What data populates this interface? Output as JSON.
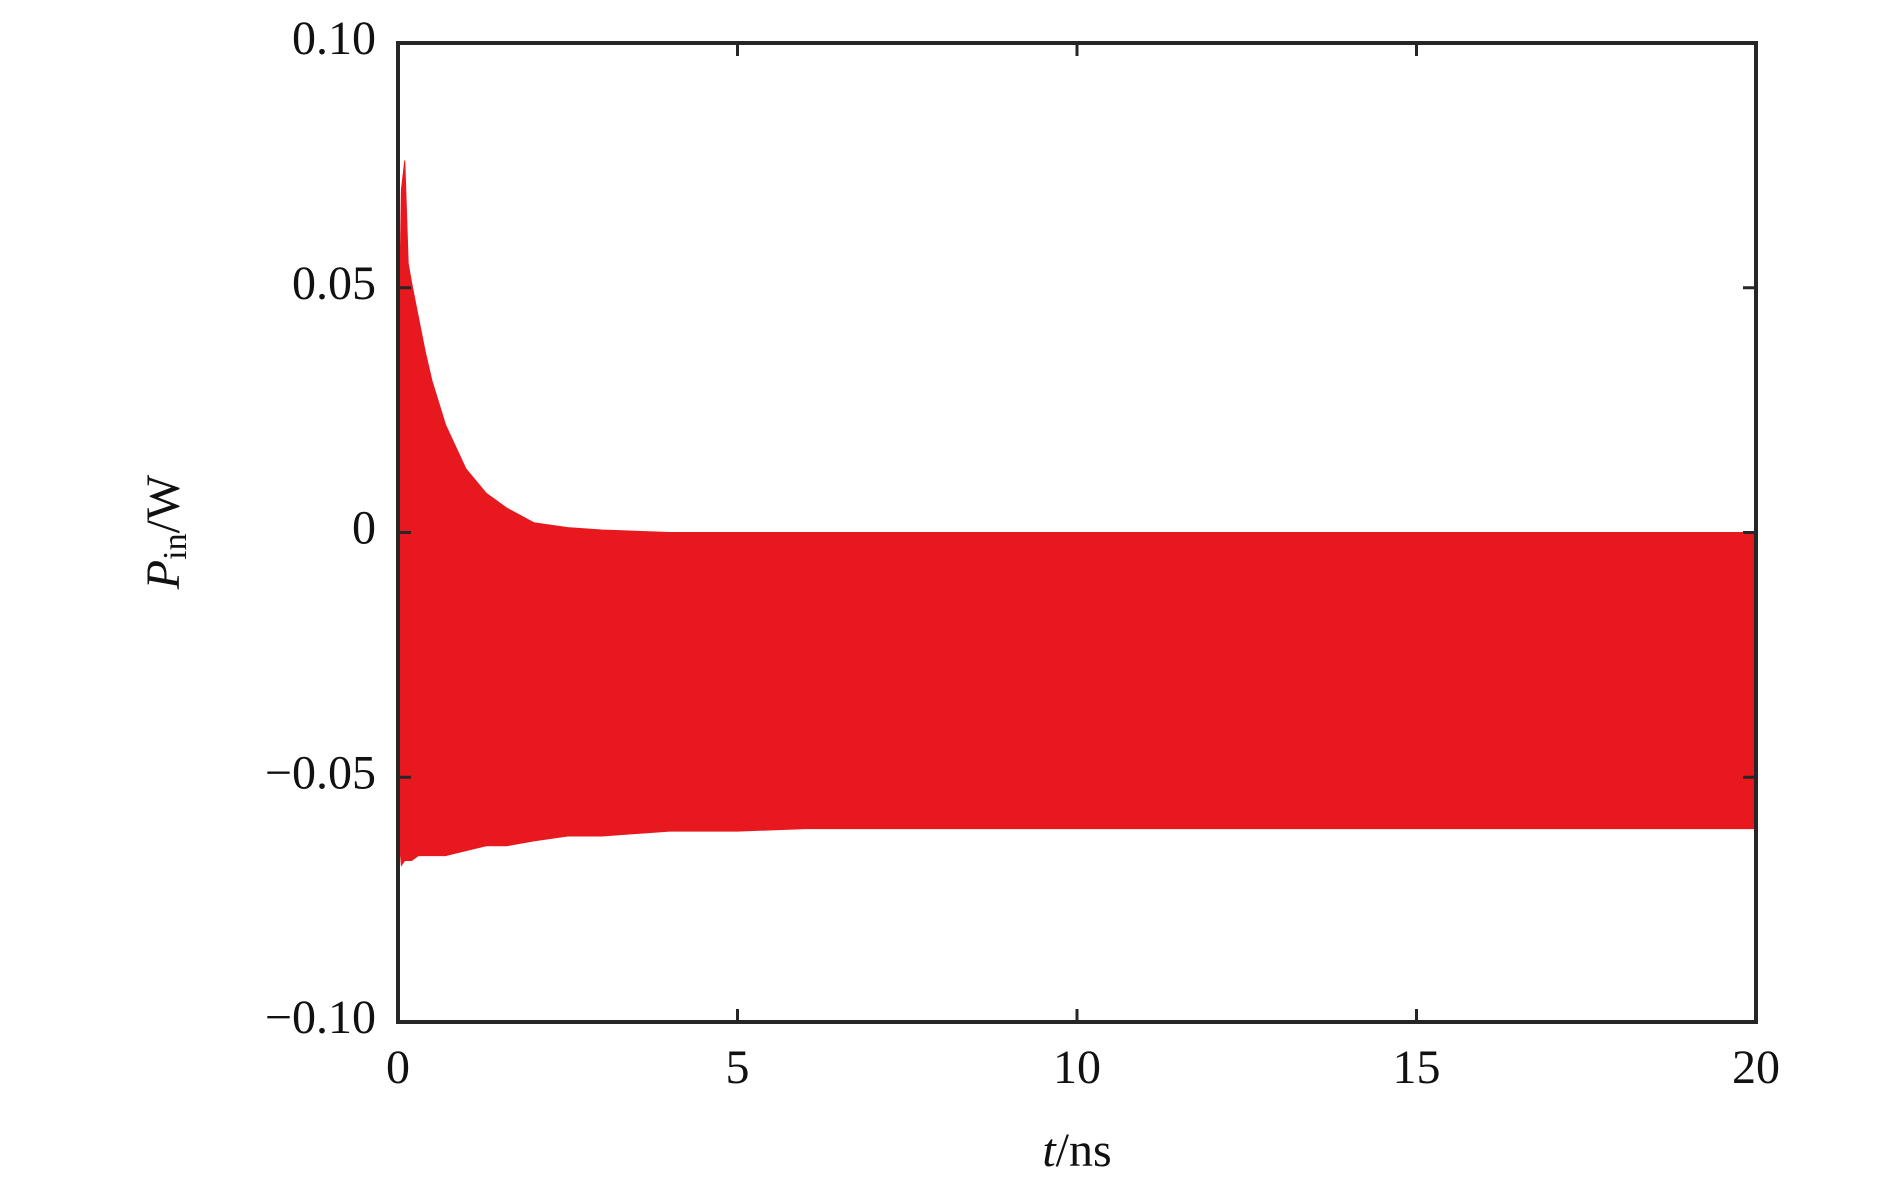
{
  "chart_data": {
    "type": "area",
    "xlabel": {
      "var": "t",
      "unit": "/ns"
    },
    "ylabel": {
      "var": "P",
      "sub": "in",
      "unit": "/W"
    },
    "x": [
      0,
      0.05,
      0.1,
      0.15,
      0.2,
      0.3,
      0.4,
      0.5,
      0.7,
      1.0,
      1.3,
      1.6,
      2.0,
      2.5,
      3.0,
      4.0,
      5.0,
      6.0,
      8.0,
      10.0,
      12.0,
      14.0,
      16.0,
      18.0,
      20.0
    ],
    "series": [
      {
        "color": "#e8191e",
        "values": [
          0.025,
          0.07,
          0.076,
          0.055,
          0.051,
          0.044,
          0.037,
          0.031,
          0.022,
          0.013,
          0.008,
          0.005,
          0.002,
          0.001,
          0.0005,
          0,
          0,
          0,
          0,
          0,
          0,
          0,
          0,
          0,
          0
        ]
      },
      {
        "color": "#e8191e",
        "values": [
          -0.06,
          -0.068,
          -0.067,
          -0.067,
          -0.067,
          -0.066,
          -0.066,
          -0.066,
          -0.066,
          -0.065,
          -0.064,
          -0.064,
          -0.063,
          -0.062,
          -0.062,
          -0.061,
          -0.061,
          -0.0605,
          -0.0605,
          -0.0605,
          -0.0605,
          -0.0605,
          -0.0605,
          -0.0605,
          -0.0605
        ]
      }
    ],
    "xlim": [
      0,
      20
    ],
    "xticks": [
      0,
      5,
      10,
      15,
      20
    ],
    "ylim": [
      -0.1,
      0.1
    ],
    "yticks": [
      {
        "value": -0.1,
        "label": "−0.10"
      },
      {
        "value": -0.05,
        "label": "−0.05"
      },
      0,
      0.05,
      {
        "value": 0.1,
        "label": "0.10"
      }
    ]
  }
}
